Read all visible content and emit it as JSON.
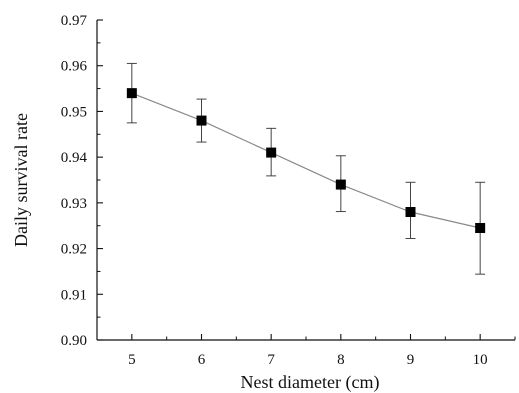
{
  "chart_data": {
    "type": "line",
    "title": "",
    "xlabel": "Nest diameter (cm)",
    "ylabel": "Daily survival rate",
    "x": [
      5,
      6,
      7,
      8,
      9,
      10
    ],
    "xlim": [
      4.5,
      10.5
    ],
    "ylim": [
      0.9,
      0.97
    ],
    "xticks": [
      "5",
      "6",
      "7",
      "8",
      "9",
      "10"
    ],
    "yticks": [
      "0.90",
      "0.91",
      "0.92",
      "0.93",
      "0.94",
      "0.95",
      "0.96",
      "0.97"
    ],
    "series": [
      {
        "values": [
          0.954,
          0.948,
          0.941,
          0.934,
          0.928,
          0.9245
        ],
        "error_upper": [
          0.9605,
          0.9527,
          0.9463,
          0.9403,
          0.9345,
          0.9345
        ],
        "error_lower": [
          0.9475,
          0.9433,
          0.9359,
          0.9281,
          0.9222,
          0.9144
        ],
        "marker": "square",
        "line_color": "#8a8a8a",
        "marker_color": "#000000"
      }
    ],
    "grid": false,
    "legend": "none"
  }
}
